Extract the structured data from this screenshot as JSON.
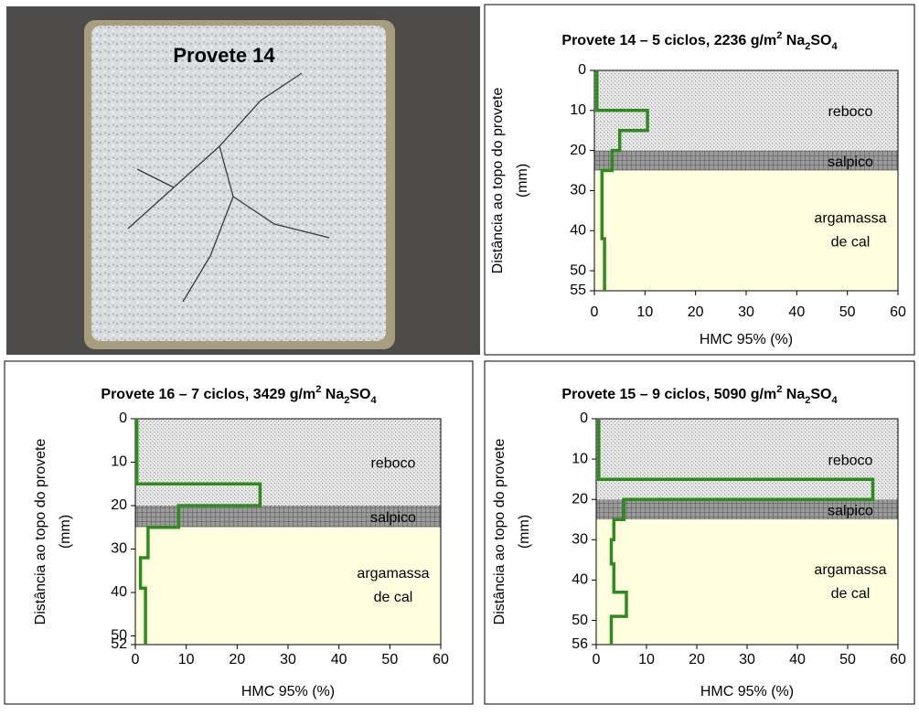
{
  "photo": {
    "label": "Provete 14"
  },
  "chart_data": [
    {
      "type": "step-line",
      "title": [
        {
          "text": "Provete 14 – 5 ciclos, 2236 g/m"
        },
        {
          "text": "2",
          "sup": true
        },
        {
          "text": " Na"
        },
        {
          "text": "2",
          "sub": true
        },
        {
          "text": "SO"
        },
        {
          "text": "4",
          "sub": true
        }
      ],
      "y_label": [
        "Distância ao topo do provete",
        "(mm)"
      ],
      "x_label": "HMC 95% (%)",
      "xlim": [
        0,
        60
      ],
      "xticks": [
        0,
        10,
        20,
        30,
        40,
        50,
        60
      ],
      "ylim": [
        0,
        55
      ],
      "yticks": [
        0,
        10,
        20,
        30,
        40,
        50,
        55
      ],
      "y_inverted": true,
      "zones": [
        {
          "lines": [
            "reboco"
          ],
          "from": 0,
          "to": 20,
          "style": "dots"
        },
        {
          "lines": [
            "salpico"
          ],
          "from": 20,
          "to": 25,
          "style": "hatch"
        },
        {
          "lines": [
            "argamassa",
            "de cal"
          ],
          "from": 25,
          "to": 55,
          "style": "plain"
        }
      ],
      "series": [
        {
          "color": "#2e8b1e",
          "x": [
            0.5,
            0.5,
            10.5,
            10.5,
            5,
            5,
            3.5,
            3.5,
            1.5,
            1.5,
            2,
            2
          ],
          "y": [
            0,
            10,
            10,
            15,
            15,
            20,
            20,
            25,
            25,
            42,
            42,
            55
          ]
        }
      ]
    },
    {
      "type": "step-line",
      "title": [
        {
          "text": "Provete 16 – 7 ciclos, 3429 g/m"
        },
        {
          "text": "2",
          "sup": true
        },
        {
          "text": " Na"
        },
        {
          "text": "2",
          "sub": true
        },
        {
          "text": "SO"
        },
        {
          "text": "4",
          "sub": true
        }
      ],
      "y_label": [
        "Distância ao topo do provete",
        "(mm)"
      ],
      "x_label": "HMC 95% (%)",
      "xlim": [
        0,
        60
      ],
      "xticks": [
        0,
        10,
        20,
        30,
        40,
        50,
        60
      ],
      "ylim": [
        0,
        52
      ],
      "yticks": [
        0,
        10,
        20,
        30,
        40,
        50,
        52
      ],
      "y_inverted": true,
      "zones": [
        {
          "lines": [
            "reboco"
          ],
          "from": 0,
          "to": 20,
          "style": "dots"
        },
        {
          "lines": [
            "salpico"
          ],
          "from": 20,
          "to": 25,
          "style": "hatch"
        },
        {
          "lines": [
            "argamassa",
            "de cal"
          ],
          "from": 25,
          "to": 52,
          "style": "plain"
        }
      ],
      "series": [
        {
          "color": "#2e8b1e",
          "x": [
            0.3,
            0.3,
            24.5,
            24.5,
            8.5,
            8.5,
            2.5,
            2.5,
            1,
            1,
            2,
            2,
            2,
            2
          ],
          "y": [
            0,
            15,
            15,
            20,
            20,
            25,
            25,
            32,
            32,
            39,
            39,
            45,
            45,
            52
          ]
        }
      ]
    },
    {
      "type": "step-line",
      "title": [
        {
          "text": "Provete 15 – 9 ciclos, 5090 g/m"
        },
        {
          "text": "2",
          "sup": true
        },
        {
          "text": " Na"
        },
        {
          "text": "2",
          "sub": true
        },
        {
          "text": "SO"
        },
        {
          "text": "4",
          "sub": true
        }
      ],
      "y_label": [
        "Distância ao topo do provete",
        "(mm)"
      ],
      "x_label": "HMC 95% (%)",
      "xlim": [
        0,
        60
      ],
      "xticks": [
        0,
        10,
        20,
        30,
        40,
        50,
        60
      ],
      "ylim": [
        0,
        56
      ],
      "yticks": [
        0,
        10,
        20,
        30,
        40,
        50,
        56
      ],
      "y_inverted": true,
      "zones": [
        {
          "lines": [
            "reboco"
          ],
          "from": 0,
          "to": 20,
          "style": "dots"
        },
        {
          "lines": [
            "salpico"
          ],
          "from": 20,
          "to": 25,
          "style": "hatch"
        },
        {
          "lines": [
            "argamassa",
            "de cal"
          ],
          "from": 25,
          "to": 56,
          "style": "plain"
        }
      ],
      "series": [
        {
          "color": "#2e8b1e",
          "x": [
            0.5,
            0.5,
            55,
            55,
            5.5,
            5.5,
            3.5,
            3.5,
            3,
            3,
            3.5,
            3.5,
            6,
            6,
            3,
            3
          ],
          "y": [
            0,
            15,
            15,
            20,
            20,
            25,
            25,
            30,
            30,
            36,
            36,
            43,
            43,
            49,
            49,
            56
          ]
        }
      ]
    }
  ]
}
